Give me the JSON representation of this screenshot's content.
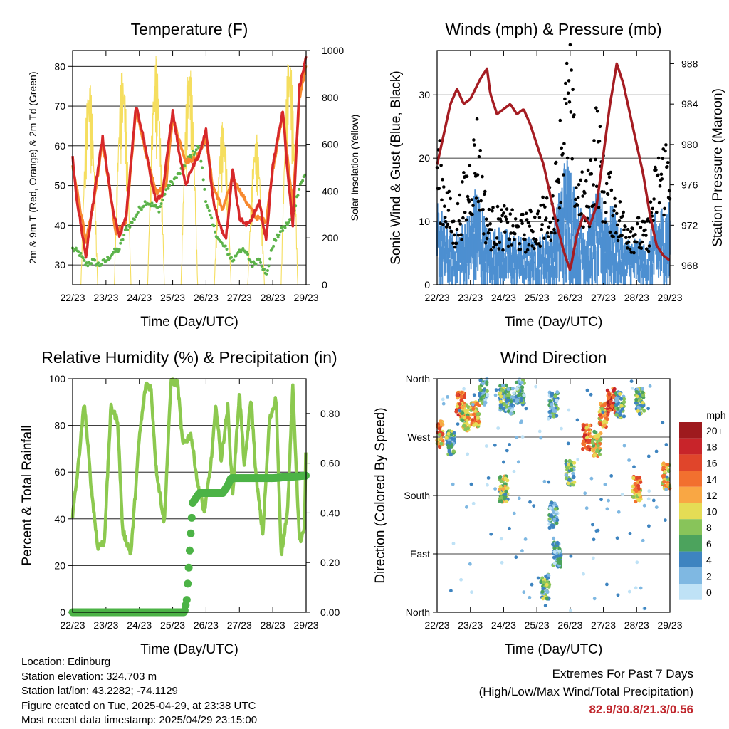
{
  "colors": {
    "temp_red": "#d7282a",
    "temp_orange": "#f7892f",
    "dewpoint_green": "#5cb34a",
    "insolation_yellow": "#f5de5f",
    "wind_blue": "#4d8fd1",
    "gust_black": "#000000",
    "pressure_maroon": "#a51c22",
    "rh_lightgreen": "#8cc94f",
    "precip_green": "#4cb346",
    "extremes_red": "#c0272d"
  },
  "time_ticks": [
    "22/23",
    "23/23",
    "24/23",
    "25/23",
    "26/23",
    "27/23",
    "28/23",
    "29/23"
  ],
  "chart_data": [
    {
      "type": "line",
      "title": "Temperature (F)",
      "xlabel": "Time (Day/UTC)",
      "ylabel": "2m & 9m T (Red, Orange) & 2m Td (Green)",
      "ylabel_right": "Solar Insolation (Yellow)",
      "x": [
        "22/23",
        "23/23",
        "24/23",
        "25/23",
        "26/23",
        "27/23",
        "28/23",
        "29/23"
      ],
      "ylim": [
        25,
        84
      ],
      "yticks": [
        30,
        40,
        50,
        60,
        70,
        80
      ],
      "ylim_right": [
        0,
        1000
      ],
      "yticks_right": [
        0,
        200,
        400,
        600,
        800,
        1000
      ],
      "grid": true,
      "series": [
        {
          "color": "red",
          "x": [
            0.0,
            0.1,
            0.25,
            0.4,
            0.6,
            0.9,
            1.2,
            1.4,
            1.6,
            1.9,
            2.1,
            2.3,
            2.5,
            2.7,
            3.0,
            3.2,
            3.4,
            3.5,
            3.8,
            4.0,
            4.2,
            4.4,
            4.6,
            4.8,
            5.0,
            5.2,
            5.4,
            5.6,
            5.8,
            6.0,
            6.3,
            6.4,
            6.6,
            6.8,
            7.0
          ],
          "values": [
            57,
            48,
            40,
            32,
            45,
            62,
            44,
            37,
            42,
            70,
            63,
            54,
            46,
            48,
            69,
            58,
            50,
            53,
            58,
            64,
            47,
            40,
            37,
            54,
            42,
            40,
            42,
            46,
            36,
            55,
            69,
            58,
            40,
            75,
            82
          ]
        },
        {
          "color": "orange",
          "x": [
            0.0,
            0.4,
            0.6,
            0.9,
            1.3,
            1.6,
            1.9,
            2.2,
            2.5,
            2.8,
            3.0,
            3.4,
            3.7,
            4.0,
            4.2,
            4.5,
            4.8,
            5.2,
            5.5,
            5.8,
            6.0,
            6.3,
            6.6,
            6.8,
            7.0
          ],
          "values": [
            55,
            36,
            44,
            61,
            38,
            41,
            69,
            58,
            48,
            50,
            67,
            56,
            57,
            62,
            50,
            44,
            52,
            46,
            42,
            41,
            54,
            68,
            45,
            72,
            80
          ]
        },
        {
          "color": "green",
          "x": [
            0.0,
            0.2,
            0.4,
            0.6,
            0.8,
            1.0,
            1.2,
            1.4,
            1.6,
            1.8,
            2.0,
            2.2,
            2.4,
            2.6,
            2.8,
            3.0,
            3.2,
            3.4,
            3.6,
            3.8,
            4.0,
            4.2,
            4.4,
            4.6,
            4.8,
            5.0,
            5.2,
            5.4,
            5.6,
            5.8,
            6.0,
            6.2,
            6.4,
            6.6,
            6.8,
            7.0
          ],
          "values": [
            34,
            33,
            30,
            31,
            30,
            31,
            33,
            34,
            39,
            41,
            44,
            46,
            45,
            44,
            49,
            51,
            53,
            56,
            58,
            60,
            46,
            40,
            36,
            34,
            31,
            34,
            33,
            30,
            32,
            27,
            35,
            38,
            40,
            42,
            50,
            53
          ]
        }
      ],
      "insolation_days": [
        0.5,
        1.5,
        2.5,
        3.5,
        4.5,
        5.5,
        6.5
      ],
      "insolation_peaks": [
        880,
        930,
        980,
        960,
        700,
        650,
        1000
      ]
    },
    {
      "type": "scatter",
      "title": "Winds (mph) & Pressure (mb)",
      "xlabel": "Time (Day/UTC)",
      "ylabel": "Sonic Wind & Gust (Blue, Black)",
      "ylabel_right": "Station Pressure (Maroon)",
      "x": [
        "22/23",
        "23/23",
        "24/23",
        "25/23",
        "26/23",
        "27/23",
        "28/23",
        "29/23"
      ],
      "ylim": [
        0,
        37
      ],
      "yticks": [
        0,
        10,
        20,
        30
      ],
      "ylim_right": [
        966.1,
        989.3
      ],
      "yticks_right": [
        968,
        972,
        976,
        980,
        984,
        988
      ],
      "grid": true,
      "pressure": {
        "x": [
          0.0,
          0.2,
          0.4,
          0.6,
          0.8,
          1.0,
          1.3,
          1.5,
          1.6,
          1.8,
          2.0,
          2.2,
          2.4,
          2.6,
          2.8,
          3.0,
          3.2,
          3.4,
          3.6,
          3.8,
          4.0,
          4.2,
          4.4,
          4.6,
          4.8,
          5.0,
          5.2,
          5.4,
          5.6,
          5.8,
          6.0,
          6.2,
          6.4,
          6.6,
          6.8,
          7.0
        ],
        "values": [
          978,
          981,
          984,
          985.5,
          984,
          984.5,
          986.5,
          987.5,
          985,
          983,
          983.5,
          984,
          983,
          983.5,
          982,
          980,
          978,
          975,
          972,
          969.5,
          967.5,
          971,
          973,
          972,
          974,
          979,
          984,
          988,
          986,
          983,
          980,
          977,
          973,
          970,
          969,
          968.5
        ]
      },
      "wind_mean": {
        "x": [
          0.0,
          0.5,
          1.0,
          1.2,
          1.5,
          2.0,
          2.5,
          3.0,
          3.5,
          3.8,
          4.0,
          4.2,
          4.5,
          4.8,
          5.0,
          5.3,
          5.6,
          6.0,
          6.3,
          6.6,
          7.0
        ],
        "values": [
          9,
          5,
          8,
          11,
          6,
          6,
          5,
          5,
          6,
          13,
          14,
          9,
          7,
          10,
          9,
          8,
          5,
          5,
          4,
          8,
          9
        ]
      },
      "gust_mean": {
        "x": [
          0.0,
          0.5,
          1.0,
          1.2,
          1.5,
          2.0,
          2.5,
          3.0,
          3.5,
          3.8,
          4.0,
          4.2,
          4.5,
          4.8,
          5.0,
          5.3,
          5.6,
          6.0,
          6.3,
          6.6,
          7.0
        ],
        "values": [
          18,
          8,
          16,
          20,
          9,
          9,
          8,
          9,
          12,
          24,
          28,
          14,
          12,
          22,
          15,
          12,
          9,
          8,
          7,
          15,
          19
        ]
      }
    },
    {
      "type": "line",
      "title": "Relative Humidity (%) & Precipitation (in)",
      "xlabel": "Time (Day/UTC)",
      "ylabel": "Percent & Total Rainfall",
      "x": [
        "22/23",
        "23/23",
        "24/23",
        "25/23",
        "26/23",
        "27/23",
        "28/23",
        "29/23"
      ],
      "ylim": [
        0,
        100
      ],
      "yticks": [
        0,
        20,
        40,
        60,
        80,
        100
      ],
      "ylim_right": [
        0,
        0.94
      ],
      "yticks_right": [
        "0.00",
        "0.20",
        "0.40",
        "0.60",
        "0.80"
      ],
      "grid": true,
      "rh": {
        "x": [
          0.0,
          0.15,
          0.35,
          0.55,
          0.75,
          0.95,
          1.15,
          1.35,
          1.5,
          1.75,
          2.0,
          2.2,
          2.35,
          2.5,
          2.75,
          2.95,
          3.15,
          3.3,
          3.55,
          3.75,
          3.95,
          4.15,
          4.3,
          4.45,
          4.65,
          4.8,
          5.0,
          5.15,
          5.35,
          5.5,
          5.7,
          5.9,
          6.1,
          6.25,
          6.45,
          6.6,
          6.8,
          6.95,
          7.0
        ],
        "values": [
          41,
          60,
          90,
          55,
          28,
          30,
          88,
          82,
          35,
          25,
          75,
          98,
          96,
          62,
          38,
          99,
          98,
          72,
          76,
          55,
          43,
          64,
          89,
          65,
          88,
          50,
          94,
          62,
          92,
          58,
          33,
          82,
          92,
          24,
          45,
          96,
          30,
          35,
          75
        ]
      },
      "precip": {
        "x": [
          0.0,
          3.35,
          3.42,
          3.48,
          3.55,
          3.6,
          3.7,
          3.8,
          4.0,
          4.5,
          4.65,
          4.75,
          5.0,
          6.0,
          7.0
        ],
        "values": [
          0.0,
          0.0,
          0.05,
          0.18,
          0.34,
          0.44,
          0.46,
          0.48,
          0.48,
          0.48,
          0.51,
          0.54,
          0.54,
          0.54,
          0.55
        ]
      }
    },
    {
      "type": "scatter",
      "title": "Wind Direction",
      "xlabel": "Time (Day/UTC)",
      "ylabel": "Direction (Colored By Speed)",
      "x": [
        "22/23",
        "23/23",
        "24/23",
        "25/23",
        "26/23",
        "27/23",
        "28/23",
        "29/23"
      ],
      "ylim": [
        0,
        360
      ],
      "yticks": [
        "North",
        "East",
        "South",
        "West",
        "North"
      ],
      "grid": true,
      "legend": {
        "title": "mph",
        "labels": [
          "20+",
          "18",
          "16",
          "14",
          "12",
          "10",
          "8",
          "6",
          "4",
          "2",
          "0"
        ],
        "colors": [
          "#9e1a1e",
          "#c8242a",
          "#e0452b",
          "#f2702f",
          "#f9a744",
          "#e5dc55",
          "#88c45a",
          "#4ca35d",
          "#3e84c0",
          "#7fb8e2",
          "#bfe2f6"
        ],
        "placement": "right"
      },
      "clusters": [
        {
          "x": 0.05,
          "dir": 275,
          "speed": 12
        },
        {
          "x": 0.4,
          "dir": 260,
          "speed": 6
        },
        {
          "x": 0.7,
          "dir": 320,
          "speed": 14
        },
        {
          "x": 0.85,
          "dir": 300,
          "speed": 10
        },
        {
          "x": 1.15,
          "dir": 305,
          "speed": 12
        },
        {
          "x": 1.4,
          "dir": 340,
          "speed": 4
        },
        {
          "x": 2.0,
          "dir": 330,
          "speed": 6
        },
        {
          "x": 2.2,
          "dir": 325,
          "speed": 4
        },
        {
          "x": 2.5,
          "dir": 340,
          "speed": 4
        },
        {
          "x": 2.0,
          "dir": 190,
          "speed": 8
        },
        {
          "x": 3.25,
          "dir": 40,
          "speed": 6
        },
        {
          "x": 3.5,
          "dir": 320,
          "speed": 4
        },
        {
          "x": 3.5,
          "dir": 150,
          "speed": 4
        },
        {
          "x": 3.6,
          "dir": 90,
          "speed": 4
        },
        {
          "x": 4.0,
          "dir": 215,
          "speed": 6
        },
        {
          "x": 4.5,
          "dir": 270,
          "speed": 14
        },
        {
          "x": 4.8,
          "dir": 260,
          "speed": 10
        },
        {
          "x": 5.0,
          "dir": 305,
          "speed": 12
        },
        {
          "x": 5.25,
          "dir": 325,
          "speed": 16
        },
        {
          "x": 5.5,
          "dir": 320,
          "speed": 6
        },
        {
          "x": 6.0,
          "dir": 190,
          "speed": 12
        },
        {
          "x": 6.1,
          "dir": 325,
          "speed": 6
        },
        {
          "x": 6.9,
          "dir": 210,
          "speed": 12
        }
      ]
    }
  ],
  "info": {
    "location": "Location: Edinburg",
    "elevation": "Station elevation: 324.703 m",
    "latlon": "Station lat/lon: 43.2282; -74.1129",
    "created": "Figure created on Tue, 2025-04-29, at 23:38 UTC",
    "recent": "Most recent data timestamp: 2025/04/29 23:15:00"
  },
  "extremes": {
    "title": "Extremes For Past 7 Days",
    "subtitle": "(High/Low/Max Wind/Total Precipitation)",
    "values": "82.9/30.8/21.3/0.56"
  }
}
